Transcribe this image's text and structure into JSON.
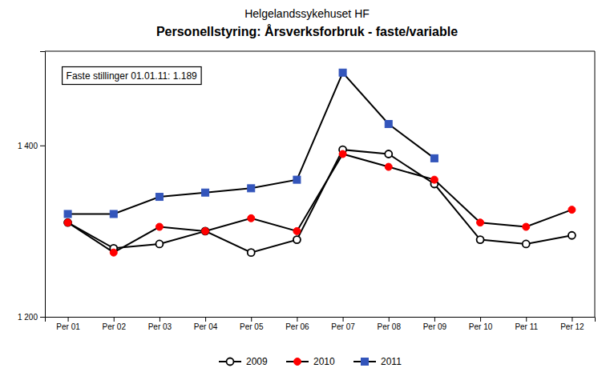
{
  "chart_data": {
    "type": "line",
    "title": "Helgelandssykehuset HF",
    "subtitle": "Personellstyring: Årsverksforbruk - faste/variable",
    "annotation": "Faste stillinger 01.01.11: 1.189",
    "categories": [
      "Per 01",
      "Per 02",
      "Per 03",
      "Per 04",
      "Per 05",
      "Per 06",
      "Per 07",
      "Per 08",
      "Per 09",
      "Per 10",
      "Per 11",
      "Per 12"
    ],
    "color": "#000000",
    "series": [
      {
        "name": "2009",
        "color": "#000000",
        "marker": "open-circle",
        "values": [
          1310,
          1280,
          1285,
          1300,
          1275,
          1290,
          1395,
          1390,
          1355,
          1290,
          1285,
          1295
        ]
      },
      {
        "name": "2010",
        "color": "#ff0000",
        "marker": "circle",
        "values": [
          1310,
          1275,
          1305,
          1300,
          1315,
          1300,
          1390,
          1375,
          1360,
          1310,
          1305,
          1325
        ]
      },
      {
        "name": "2011",
        "color": "#3355bb",
        "marker": "square",
        "values": [
          1320,
          1320,
          1340,
          1345,
          1350,
          1360,
          1485,
          1425,
          1385,
          null,
          null,
          null
        ]
      }
    ],
    "ylim": [
      1200,
      1510
    ],
    "yticks": [
      {
        "value": 1200,
        "label": "1 200"
      },
      {
        "value": 1400,
        "label": "1 400"
      }
    ],
    "grid": false,
    "legend": "bottom"
  }
}
